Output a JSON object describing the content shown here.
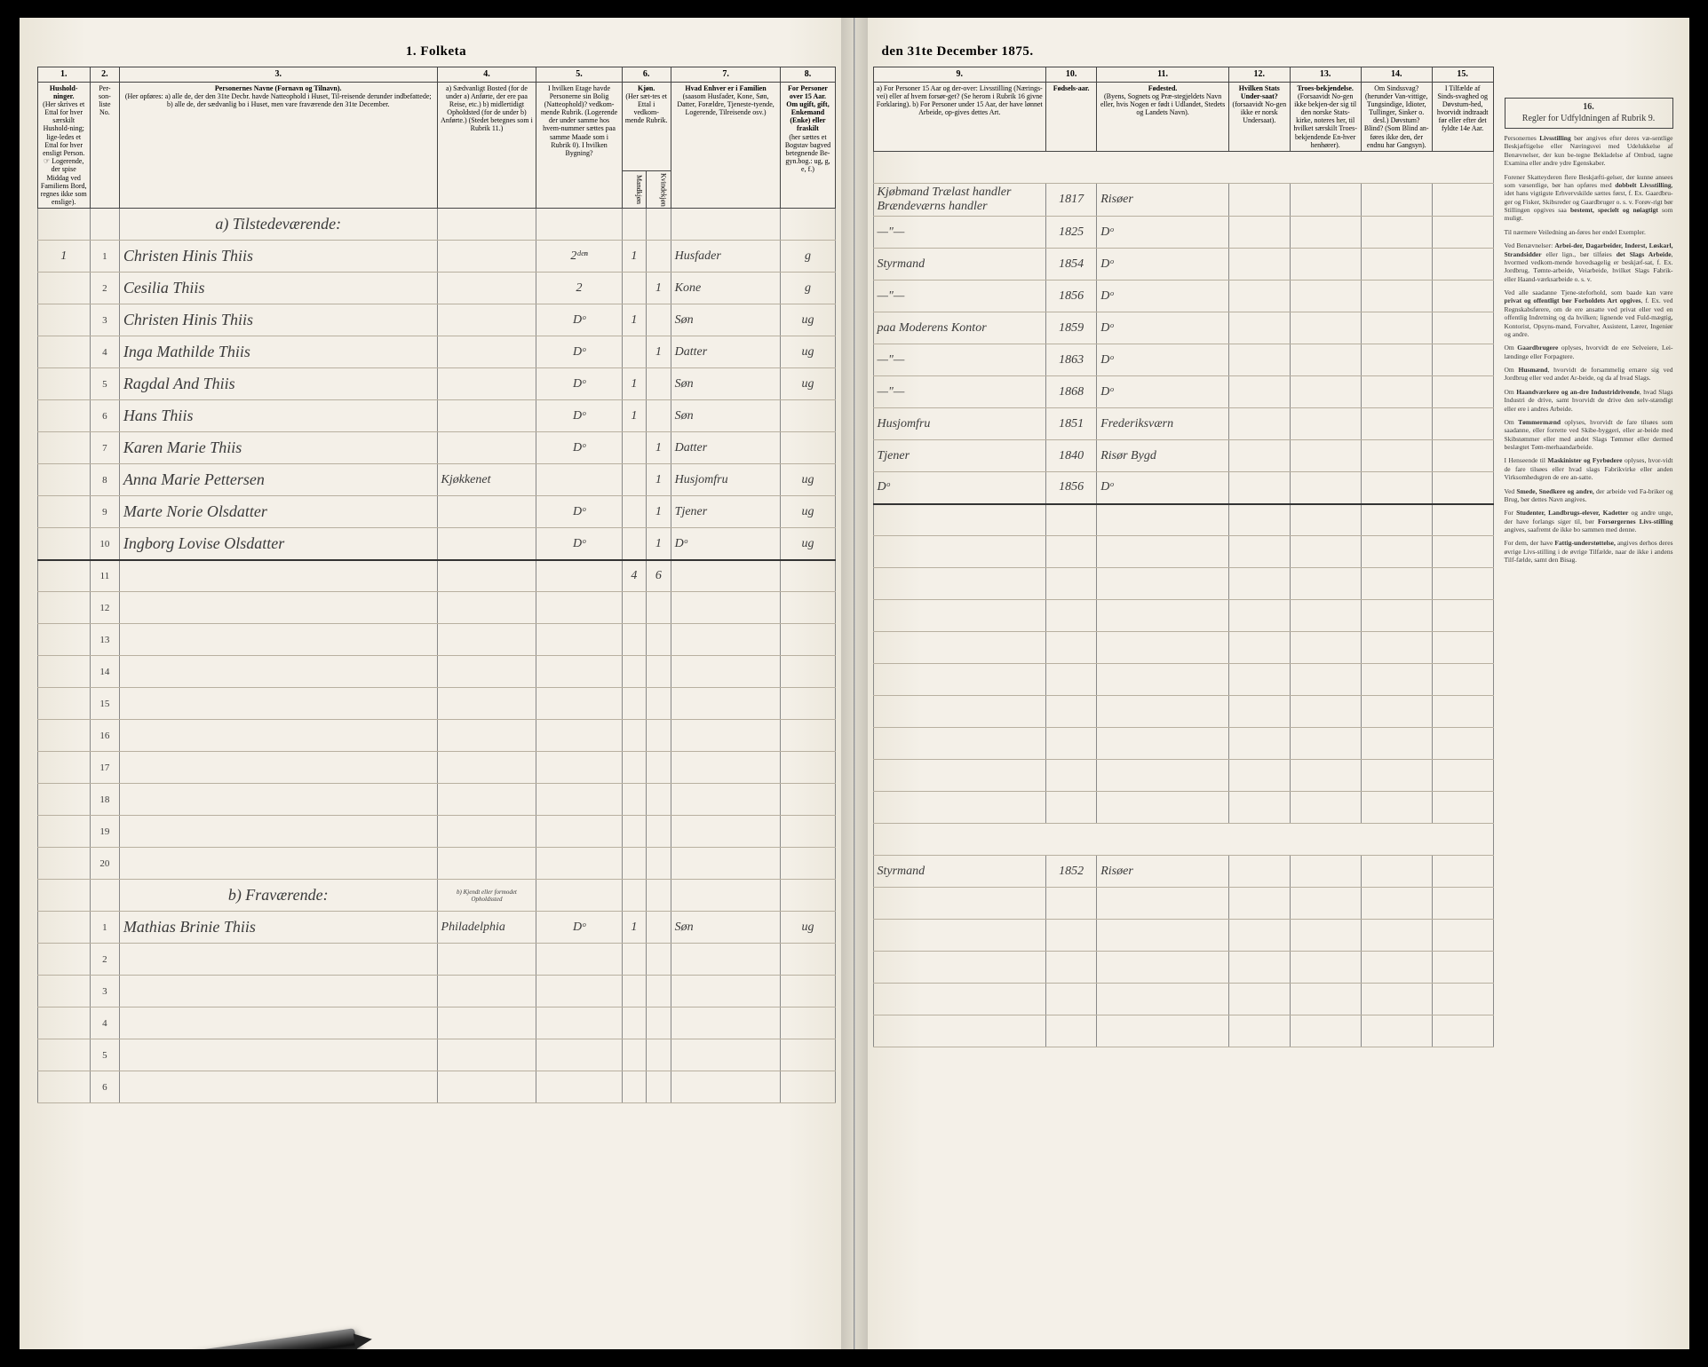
{
  "document": {
    "title_left": "1. Folketa",
    "title_right": "den 31te December 1875."
  },
  "columns_left": {
    "c1": {
      "num": "1.",
      "head": "Hushold-ninger.",
      "sub": "(Her skrives et Ettal for hver særskilt Hushold-ning; lige-ledes et Ettal for hver ensligt Person. ☞ Logerende, der spise Middag ved Familiens Bord, regnes ikke som enslige)."
    },
    "c2": {
      "num": "2.",
      "head": "Per-son-liste No."
    },
    "c3": {
      "num": "3.",
      "head": "Personernes Navne (Fornavn og Tilnavn).",
      "sub": "(Her opføres: a) alle de, der den 31te Decbr. havde Natteophold i Huset, Til-reisende derunder indbefattede; b) alle de, der sædvanlig bo i Huset, men vare fraværende den 31te December."
    },
    "c4": {
      "num": "4.",
      "head": "a) Sædvanligt Bosted (for de under a) Anførte, der ere paa Reise, etc.) b) midlertidigt Opholdsted (for de under b) Anførte.) (Stedet betegnes som i Rubrik 11.)"
    },
    "c5": {
      "num": "5.",
      "head": "I hvilken Etage havde Personerne sin Bolig (Natteophold)? vedkom-mende Rubrik. (Logerende der under samme hos hvem-nummer sættes paa samme Maade som i Rubrik 0). I hvilken Bygning?"
    },
    "c6": {
      "num": "6.",
      "head": "Kjøn.",
      "sub_m": "Mandkjøn",
      "sub_k": "Kvindekjøn"
    },
    "c7": {
      "num": "7.",
      "head": "Hvad Enhver er i Familien",
      "sub": "(saasom Husfader, Kone, Søn, Datter, Forældre, Tjeneste-tyende, Logerende, Tilreisende osv.)"
    },
    "c8": {
      "num": "8.",
      "head": "For Personer over 15 Aar. Om ugift, gift, Enkemand (Enke) eller fraskilt",
      "sub": "(her sættes et Bogstav bagved betegnende Be-gyn.bog.: ug, g, e, f.)"
    }
  },
  "columns_right": {
    "c9": {
      "num": "9.",
      "head": "a) For Personer 15 Aar og der-over: Livsstilling (Nærings-vei) eller af hvem forsør-get? (Se herom i Rubrik 16 givne Forklaring). b) For Personer under 15 Aar, der have lønnet Arbeide, op-gives dettes Art."
    },
    "c10": {
      "num": "10.",
      "head": "Fødsels-aar."
    },
    "c11": {
      "num": "11.",
      "head": "Fødested.",
      "sub": "(Byens, Sognets og Præ-stegjeldets Navn eller, hvis Nogen er født i Udlandet, Stedets og Landets Navn)."
    },
    "c12": {
      "num": "12.",
      "head": "Hvilken Stats Under-saat?",
      "sub": "(forsaavidt No-gen ikke er norsk Undersaat)."
    },
    "c13": {
      "num": "13.",
      "head": "Troes-bekjendelse.",
      "sub": "(Forsaavidt No-gen ikke bekjen-der sig til den norske Stats-kirke, noteres her, til hvilket særskilt Troes-bekjendende En-hver henhører)."
    },
    "c14": {
      "num": "14.",
      "head": "Om Sindssvag? (herunder Van-vittige, Tungsindige, Idioter, Tullinger, Sinker o. desl.) Døvstum? Blind? (Som Blind an-føres ikke den, der endnu har Gangsyn)."
    },
    "c15": {
      "num": "15.",
      "head": "I Tilfælde af Sinds-svaghed og Døvstum-hed, hvorvidt indtraadt før eller efter det fyldte 14e Aar."
    },
    "c16": {
      "num": "16.",
      "head": "Regler for Udfyldningen af Rubrik 9."
    }
  },
  "sections": {
    "present": "a) Tilstedeværende:",
    "absent": "b) Fraværende:",
    "absent_note": "b) Kjendt eller formodet Opholdssted"
  },
  "rows": [
    {
      "n": "1",
      "h": "1",
      "name": "Christen Hinis Thiis",
      "res": "",
      "floor": "2ᵈᵉⁿ",
      "sex_m": "1",
      "sex_k": "",
      "fam": "Husfader",
      "civ": "g",
      "occ": "Kjøbmand Trælast handler Brændeværns handler",
      "year": "1817",
      "place": "Risøer"
    },
    {
      "n": "2",
      "h": "",
      "name": "Cesilia Thiis",
      "res": "",
      "floor": "2",
      "sex_m": "",
      "sex_k": "1",
      "fam": "Kone",
      "civ": "g",
      "occ": "—\"—",
      "year": "1825",
      "place": "Dᵒ"
    },
    {
      "n": "3",
      "h": "",
      "name": "Christen Hinis Thiis",
      "res": "",
      "floor": "Dᵒ",
      "sex_m": "1",
      "sex_k": "",
      "fam": "Søn",
      "civ": "ug",
      "occ": "Styrmand",
      "year": "1854",
      "place": "Dᵒ"
    },
    {
      "n": "4",
      "h": "",
      "name": "Inga Mathilde Thiis",
      "res": "",
      "floor": "Dᵒ",
      "sex_m": "",
      "sex_k": "1",
      "fam": "Datter",
      "civ": "ug",
      "occ": "—\"—",
      "year": "1856",
      "place": "Dᵒ"
    },
    {
      "n": "5",
      "h": "",
      "name": "Ragdal And Thiis",
      "res": "",
      "floor": "Dᵒ",
      "sex_m": "1",
      "sex_k": "",
      "fam": "Søn",
      "civ": "ug",
      "occ": "paa Moderens Kontor",
      "year": "1859",
      "place": "Dᵒ"
    },
    {
      "n": "6",
      "h": "",
      "name": "Hans Thiis",
      "res": "",
      "floor": "Dᵒ",
      "sex_m": "1",
      "sex_k": "",
      "fam": "Søn",
      "civ": "",
      "occ": "—\"—",
      "year": "1863",
      "place": "Dᵒ"
    },
    {
      "n": "7",
      "h": "",
      "name": "Karen Marie Thiis",
      "res": "",
      "floor": "Dᵒ",
      "sex_m": "",
      "sex_k": "1",
      "fam": "Datter",
      "civ": "",
      "occ": "—\"—",
      "year": "1868",
      "place": "Dᵒ"
    },
    {
      "n": "8",
      "h": "",
      "name": "Anna Marie Pettersen",
      "res": "Kjøkkenet",
      "floor": "",
      "sex_m": "",
      "sex_k": "1",
      "fam": "Husjomfru",
      "civ": "ug",
      "occ": "Husjomfru",
      "year": "1851",
      "place": "Frederiksværn"
    },
    {
      "n": "9",
      "h": "",
      "name": "Marte Norie Olsdatter",
      "res": "",
      "floor": "Dᵒ",
      "sex_m": "",
      "sex_k": "1",
      "fam": "Tjener",
      "civ": "ug",
      "occ": "Tjener",
      "year": "1840",
      "place": "Risør Bygd"
    },
    {
      "n": "10",
      "h": "",
      "name": "Ingborg Lovise Olsdatter",
      "res": "",
      "floor": "Dᵒ",
      "sex_m": "",
      "sex_k": "1",
      "fam": "Dᵒ",
      "civ": "ug",
      "occ": "Dᵒ",
      "year": "1856",
      "place": "Dᵒ"
    }
  ],
  "summary": {
    "m": "4",
    "k": "6"
  },
  "absent_rows": [
    {
      "n": "1",
      "h": "",
      "name": "Mathias Brinie Thiis",
      "res": "Philadelphia",
      "floor": "Dᵒ",
      "sex_m": "1",
      "sex_k": "",
      "fam": "Søn",
      "civ": "ug",
      "occ": "Styrmand",
      "year": "1852",
      "place": "Risøer"
    }
  ],
  "empty_left": [
    "11",
    "12",
    "13",
    "14",
    "15",
    "16",
    "17",
    "18",
    "19",
    "20"
  ],
  "empty_absent": [
    "2",
    "3",
    "4",
    "5",
    "6"
  ],
  "instructions": {
    "title": "Regler for Udfyldningen af Rubrik 9.",
    "paras": [
      "Personernes <b>Livsstilling</b> bør angives efter deres væ-sentlige Beskjæftigelse eller Næringsvei med Udelukkelse af Benævnelser, der kun be-tegne Bekladelse af Ombud, tagne Examina eller andre ydre Egenskaber.",
      "Forener Skatteyderen flere Beskjæfti-gelser, der kunne ansees som væsentlige, bør han opføres med <b>dobbelt Livsstilling</b>, idet hans vigtigste Erhvervskilde sættes først, f. Ex. Gaardbru-ger og Fisker, Skibsreder og Gaardbruger o. s. v. Forøv-rigt bør Stillingen opgives saa <b>bestemt, specielt og nøiagtigt</b> som muligt.",
      "Til nærmere Veiledning an-føres her endel Exempler.",
      "Ved Benævnelser: <b>Arbei-der, Dagarbeider, Inderst, Løskarl, Strandsidder</b> eller lign., bør tilføies <b>det Slags Arbeide</b>, hvormed vedkom-mende hovedsagelig er beskjæf-sat, f. Ex. Jordbrug, Tømte-arbeide, Veiarbeide, hvilket Slags Fabrik- eller Haand-værksarbeide o. s. v.",
      "Ved alle saadanne Tjene-steforhold, som baade kan være <b>privat og offentligt bør Forholdets Art opgives</b>, f. Ex. ved Regnskabsførere, om de ere ansatte ved privat eller ved en offentlig Indretning og da hvilken; lignende ved Fuld-mægtig, Kontorist, Opsyns-mand, Forvalter, Assistent, Lærer, Ingeniør og andre.",
      "Om <b>Gaardbrugere</b> oplyses, hvorvidt de ere Selveiere, Lei-lændinge eller Forpagtere.",
      "Om <b>Husmænd</b>, hvorvidt de forsammelig ernære sig ved Jordbrug eller ved andet Ar-beide, og da af hvad Slags.",
      "Om <b>Haandværkere og an-dre Industridrivende</b>, hvad Slags Industri de drive, samt hvorvidt de drive den selv-stændigt eller ere i andres Arbeide.",
      "Om <b>Tømmermænd</b> oplyses, hvorvidt de fare tilsøes som saadanne, eller forrette ved Skibe-byggeri, eller ar-beide med Skibstømmer eller med andet Slags Tømmer eller dermed beslægtet Tøm-merhaandarbeide.",
      "I Henseende til <b>Maskinister og Fyrbødere</b> oplyses, hvor-vidt de fare tilsøes eller hvad slags Fabrikvirke eller anden Virksomhedsgren de ere an-satte.",
      "Ved <b>Smede, Snedkere og andre,</b> der arbeide ved Fa-briker og Brug, bør dettes Navn angives.",
      "For <b>Studenter, Landbrugs-elever, Kadetter</b> og andre unge, der have forlangs siger til, bør <b>Forsørgernes Livs-stilling</b> angives, saafremt de ikke bo sammen med denne.",
      "For dem, der have <b>Fattig-understøttelse,</b> angives derhos deres øvrige Livs-stilling i de øvrige Tilfælde, naar de ikke i andens Tilf-fælde, samt den Bisag."
    ]
  }
}
